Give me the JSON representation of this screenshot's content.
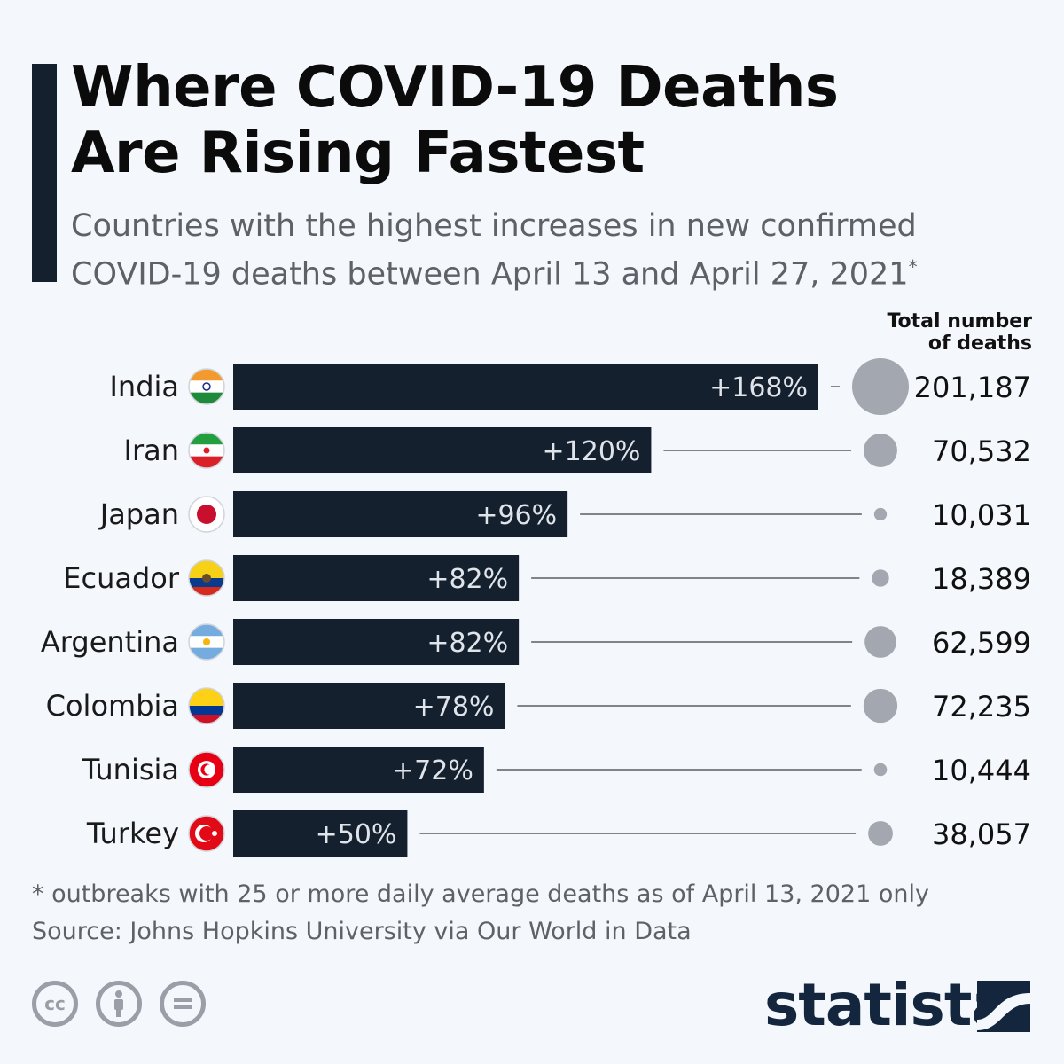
{
  "header": {
    "title": "Where COVID-19 Deaths\nAre Rising Fastest",
    "subtitle": "Countries with the highest increases in new confirmed COVID-19 deaths between April 13 and April 27, 2021",
    "subtitle_mark": "*"
  },
  "total_column_header": "Total number\nof deaths",
  "chart_data": {
    "type": "bar",
    "orientation": "horizontal",
    "categories": [
      "India",
      "Iran",
      "Japan",
      "Ecuador",
      "Argentina",
      "Colombia",
      "Tunisia",
      "Turkey"
    ],
    "value_labels": [
      "+168%",
      "+120%",
      "+96%",
      "+82%",
      "+82%",
      "+78%",
      "+72%",
      "+50%"
    ],
    "values": [
      168,
      120,
      96,
      82,
      82,
      78,
      72,
      50
    ],
    "unit": "%",
    "total_deaths": [
      201187,
      70532,
      10031,
      18389,
      62599,
      72235,
      10444,
      38057
    ],
    "total_deaths_labels": [
      "201,187",
      "70,532",
      "10,031",
      "18,389",
      "62,599",
      "72,235",
      "10,444",
      "38,057"
    ],
    "xlim": [
      0,
      168
    ],
    "grid": false,
    "legend": "none",
    "flags": [
      "india-flag-icon",
      "iran-flag-icon",
      "japan-flag-icon",
      "ecuador-flag-icon",
      "argentina-flag-icon",
      "colombia-flag-icon",
      "tunisia-flag-icon",
      "turkey-flag-icon"
    ]
  },
  "colors": {
    "bar": "#14202e",
    "bar_label": "#dfe3ea",
    "bubble": "#a3a8b0",
    "connector": "#3a3f47",
    "background": "#f4f7fb",
    "brand": "#14263e"
  },
  "footer": {
    "note": "* outbreaks with 25 or more daily average deaths as of April 13, 2021 only",
    "source": "Source: Johns Hopkins University via Our World in Data",
    "license_icons": [
      "creative-commons-icon",
      "attribution-icon",
      "no-derivatives-icon"
    ],
    "brand": "statista"
  }
}
